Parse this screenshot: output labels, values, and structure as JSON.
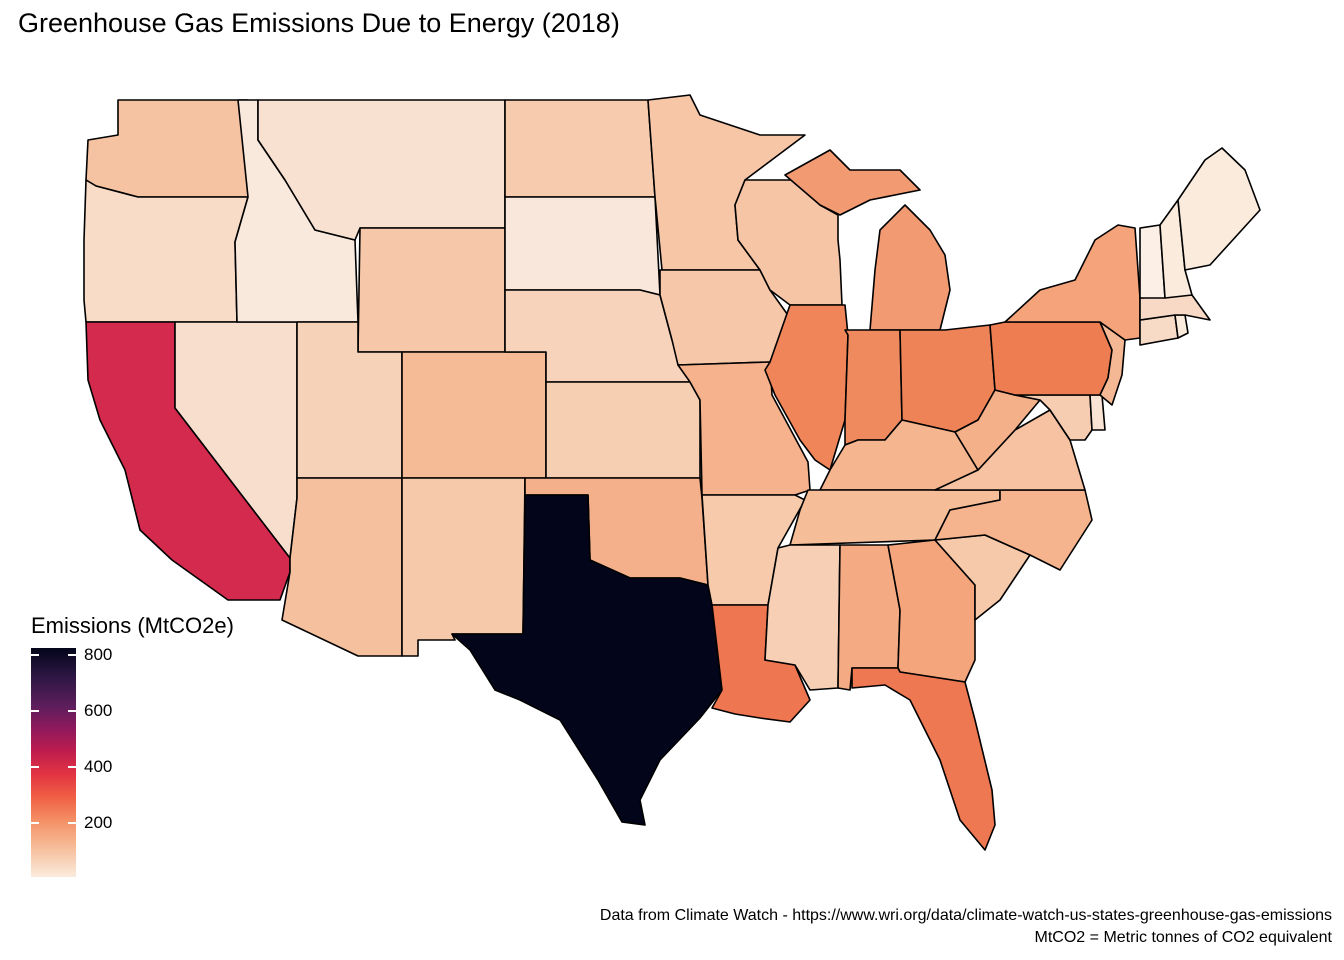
{
  "title": "Greenhouse Gas Emissions Due to Energy (2018)",
  "legend": {
    "title": "Emissions (MtCO2e)",
    "ticks": [
      "800",
      "600",
      "400",
      "200"
    ],
    "colors": [
      "#03051a",
      "#5c1e5c",
      "#be1c4e",
      "#f05f44",
      "#f6b58f",
      "#faebdd"
    ]
  },
  "caption": {
    "line1": "Data from Climate Watch - https://www.wri.org/data/climate-watch-us-states-greenhouse-gas-emissions",
    "line2": "MtCO2 = Metric tonnes of CO2 equivalent"
  },
  "states": {
    "WA": "#f6c3a2",
    "OR": "#f8dcc8",
    "CA": "#d42a4e",
    "NV": "#f8dfcd",
    "ID": "#f9e8dc",
    "MT": "#f8e1d0",
    "WY": "#f6c8a9",
    "UT": "#f6d2b8",
    "AZ": "#f5c09e",
    "CO": "#f5bb96",
    "NM": "#f6c9ab",
    "ND": "#f6cbae",
    "SD": "#f9e7db",
    "NE": "#f7d3bb",
    "KS": "#f6ceb2",
    "OK": "#f4b08a",
    "TX": "#03051a",
    "MN": "#f6c6a6",
    "IA": "#f6c7a8",
    "MO": "#f5b28c",
    "AR": "#f6caab",
    "LA": "#ee7650",
    "WI": "#f6c5a6",
    "IL": "#ef8559",
    "MI": "#f29a72",
    "IN": "#ef8a5f",
    "OH": "#ee8358",
    "KY": "#f5b58f",
    "TN": "#f5bd98",
    "MS": "#f6cfb5",
    "AL": "#f4aa82",
    "GA": "#f4a57c",
    "FL": "#ee7851",
    "SC": "#f6c9ab",
    "NC": "#f5b48e",
    "VA": "#f6c2a1",
    "WV": "#f4b089",
    "PA": "#ee7e52",
    "NY": "#f4a37a",
    "ME": "#faebdd",
    "VT": "#fbefe6",
    "NH": "#faebdd",
    "MA": "#f8d9c5",
    "CT": "#f8dbc7",
    "RI": "#faebdd",
    "NJ": "#f5b894",
    "DE": "#f9e3d4",
    "MD": "#f6cdb1"
  }
}
